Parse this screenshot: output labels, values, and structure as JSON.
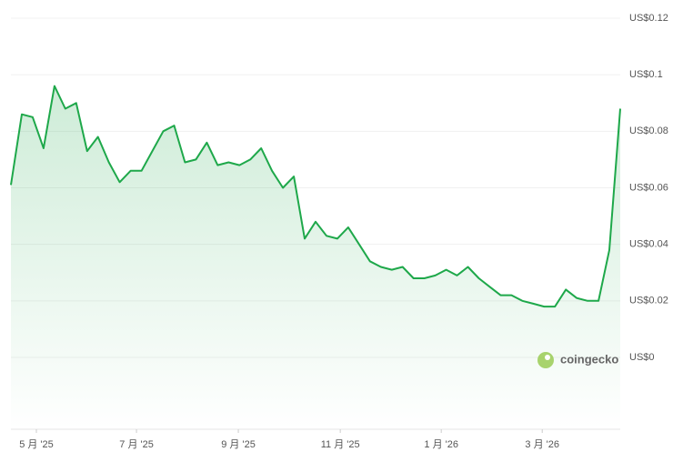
{
  "chart_data": {
    "type": "line",
    "categories": [
      null,
      null,
      null,
      null,
      null,
      null,
      null,
      null,
      null,
      null,
      null,
      null,
      null,
      null,
      null,
      null,
      null,
      null,
      null,
      null,
      null,
      null,
      null,
      null,
      null,
      null,
      null,
      null,
      null,
      null,
      null,
      null,
      null,
      null,
      null,
      null,
      null,
      null,
      null,
      null,
      null,
      null,
      null,
      null,
      null,
      null,
      null,
      null,
      null,
      null,
      null,
      null,
      null,
      null,
      null,
      null,
      null
    ],
    "values": [
      0.061,
      0.086,
      0.085,
      0.074,
      0.096,
      0.088,
      0.09,
      0.073,
      0.078,
      0.069,
      0.062,
      0.066,
      0.066,
      0.073,
      0.08,
      0.082,
      0.069,
      0.07,
      0.076,
      0.068,
      0.069,
      0.068,
      0.07,
      0.074,
      0.066,
      0.06,
      0.064,
      0.042,
      0.048,
      0.043,
      0.042,
      0.046,
      0.04,
      0.034,
      0.032,
      0.031,
      0.032,
      0.028,
      0.028,
      0.029,
      0.031,
      0.029,
      0.032,
      0.028,
      0.025,
      0.022,
      0.022,
      0.02,
      0.019,
      0.018,
      0.018,
      0.024,
      0.021,
      0.02,
      0.02,
      0.038,
      0.088
    ],
    "color": "#1ea84a",
    "xlim": [
      0,
      56
    ],
    "xticks": [
      {
        "value": 2.34,
        "label": "5 月 '25"
      },
      {
        "value": 11.54,
        "label": "7 月 '25"
      },
      {
        "value": 20.9,
        "label": "9 月 '25"
      },
      {
        "value": 30.27,
        "label": "11 月 '25"
      },
      {
        "value": 39.55,
        "label": "1 月 '26"
      },
      {
        "value": 48.83,
        "label": "3 月 '26"
      }
    ],
    "ylim": [
      0,
      0.12
    ],
    "yticks": [
      {
        "value": 0,
        "label": "US$0"
      },
      {
        "value": 0.02,
        "label": "US$0.02"
      },
      {
        "value": 0.04,
        "label": "US$0.04"
      },
      {
        "value": 0.06,
        "label": "US$0.06"
      },
      {
        "value": 0.08,
        "label": "US$0.08"
      },
      {
        "value": 0.1,
        "label": "US$0.1"
      },
      {
        "value": 0.12,
        "label": "US$0.12"
      }
    ],
    "grid": true,
    "watermark": "coingecko"
  }
}
